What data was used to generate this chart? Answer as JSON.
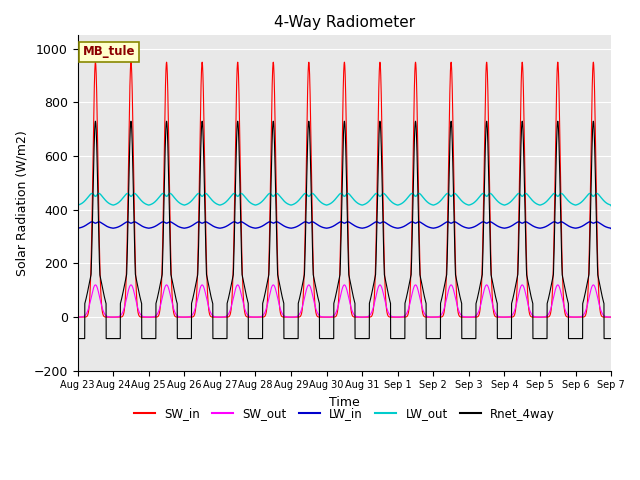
{
  "title": "4-Way Radiometer",
  "xlabel": "Time",
  "ylabel": "Solar Radiation (W/m2)",
  "ylim": [
    -200,
    1050
  ],
  "site_label": "MB_tule",
  "x_tick_labels": [
    "Aug 23",
    "Aug 24",
    "Aug 25",
    "Aug 26",
    "Aug 27",
    "Aug 28",
    "Aug 29",
    "Aug 30",
    "Aug 31",
    "Sep 1",
    "Sep 2",
    "Sep 3",
    "Sep 4",
    "Sep 5",
    "Sep 6",
    "Sep 7"
  ],
  "n_days": 15,
  "SW_in_peak": 950,
  "SW_out_peak": 120,
  "LW_in_base": 330,
  "LW_in_peak": 370,
  "LW_out_base": 415,
  "LW_out_peak": 470,
  "Rnet_peak": 730,
  "Rnet_night": -80,
  "colors": {
    "SW_in": "#ff0000",
    "SW_out": "#ff00ff",
    "LW_in": "#0000cc",
    "LW_out": "#00cccc",
    "Rnet_4way": "#000000"
  },
  "background_color": "#e8e8e8",
  "title_fontsize": 11,
  "label_fontsize": 9
}
